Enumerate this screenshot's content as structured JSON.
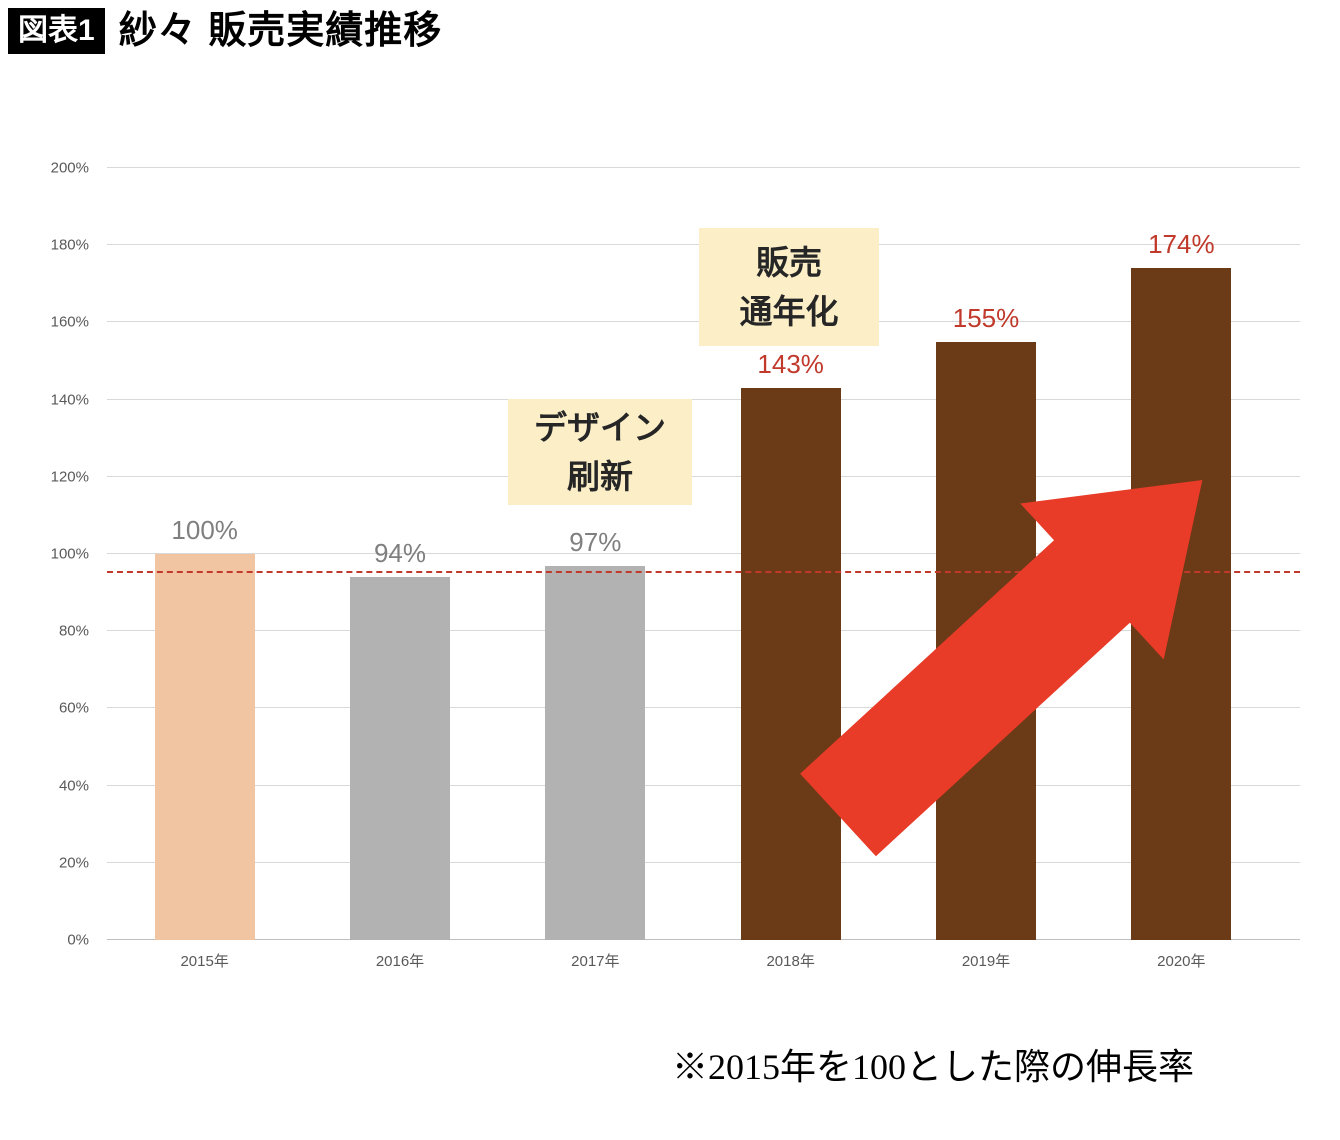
{
  "header": {
    "badge": "図表1",
    "title": "紗々 販売実績推移"
  },
  "chart_data": {
    "type": "bar",
    "title": "紗々 販売実績推移",
    "categories": [
      "2015年",
      "2016年",
      "2017年",
      "2018年",
      "2019年",
      "2020年"
    ],
    "values": [
      100,
      94,
      97,
      143,
      155,
      174
    ],
    "value_labels": [
      "100%",
      "94%",
      "97%",
      "143%",
      "155%",
      "174%"
    ],
    "bar_colors": [
      "#f2c5a2",
      "#b2b2b2",
      "#b2b2b2",
      "#6b3a17",
      "#6b3a17",
      "#6b3a17"
    ],
    "value_label_colors": [
      "#7f7f7f",
      "#7f7f7f",
      "#7f7f7f",
      "#c0392b",
      "#c0392b",
      "#c0392b"
    ],
    "xlabel": "",
    "ylabel": "",
    "ylim": [
      0,
      200
    ],
    "ytick_step": 20,
    "ytick_suffix": "%",
    "grid": true,
    "legend": "none",
    "reference_line": {
      "value": 95,
      "color": "#c0392b",
      "style": "dashed"
    },
    "annotations": [
      {
        "lines": [
          "デザイン",
          "刷新"
        ],
        "anchor_category": "2017年"
      },
      {
        "lines": [
          "販売",
          "通年化"
        ],
        "anchor_category": "2018年"
      }
    ],
    "arrow": {
      "color": "#e83b28",
      "direction": "up-right"
    },
    "footnote": "※2015年を100とした際の伸長率"
  }
}
